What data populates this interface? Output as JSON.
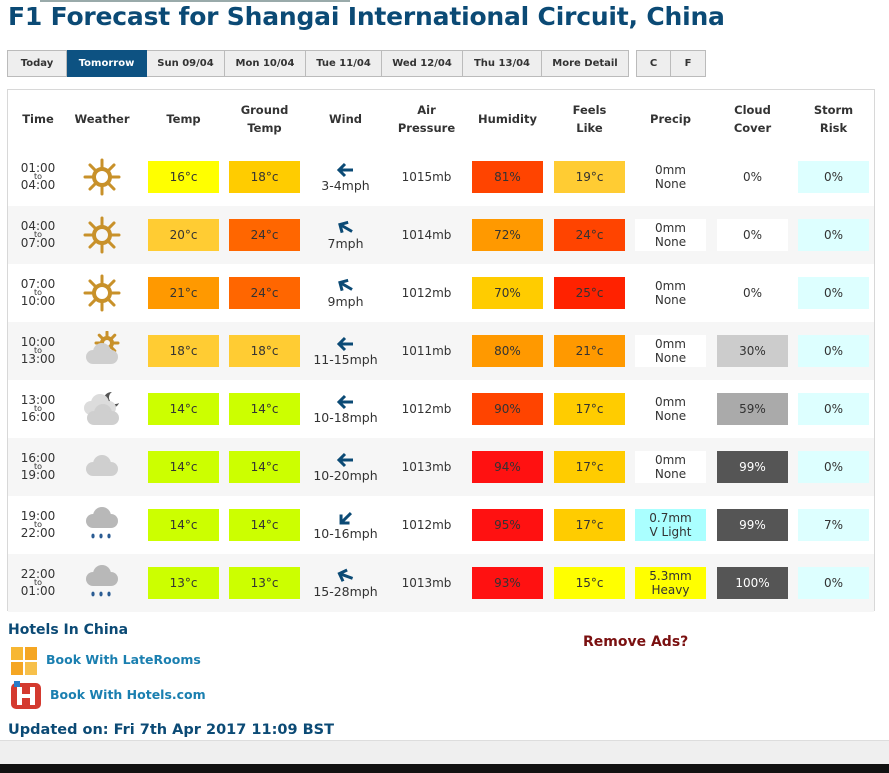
{
  "page": {
    "title": "F1 Forecast for Shangai International Circuit, China"
  },
  "tabs": [
    {
      "label": "Today",
      "active": false
    },
    {
      "label": "Tomorrow",
      "active": true
    },
    {
      "label": "Sun 09/04",
      "active": false
    },
    {
      "label": "Mon 10/04",
      "active": false
    },
    {
      "label": "Tue 11/04",
      "active": false
    },
    {
      "label": "Wed 12/04",
      "active": false
    },
    {
      "label": "Thu 13/04",
      "active": false
    },
    {
      "label": "More Detail",
      "active": false
    }
  ],
  "units": [
    {
      "label": "C"
    },
    {
      "label": "F"
    }
  ],
  "table": {
    "headers": {
      "time": "Time",
      "weather": "Weather",
      "temp": "Temp",
      "ground1": "Ground",
      "ground2": "Temp",
      "wind": "Wind",
      "air1": "Air",
      "air2": "Pressure",
      "humidity": "Humidity",
      "feels1": "Feels",
      "feels2": "Like",
      "precip": "Precip",
      "cloud1": "Cloud",
      "cloud2": "Cover",
      "storm1": "Storm",
      "storm2": "Risk"
    },
    "to_label": "to",
    "rows": [
      {
        "from": "01:00",
        "to": "04:00",
        "icon": "sun-icon",
        "temp": "16°c",
        "temp_color": "#ffff00",
        "ground": "18°c",
        "ground_color": "#ffcc00",
        "wind_dir": "arrow-left-icon",
        "wind_angle": 0,
        "wind": "3-4mph",
        "pressure": "1015mb",
        "humidity": "81%",
        "humidity_color": "#ff4400",
        "feels": "19°c",
        "feels_color": "#ffcc33",
        "precip1": "0mm",
        "precip2": "None",
        "precip_color": "#ffffff",
        "cloud": "0%",
        "cloud_color": "#ffffff",
        "storm": "0%",
        "storm_color": "#ddffff"
      },
      {
        "from": "04:00",
        "to": "07:00",
        "icon": "sun-icon",
        "temp": "20°c",
        "temp_color": "#ffcc33",
        "ground": "24°c",
        "ground_color": "#ff6600",
        "wind_dir": "arrow-up-left-icon",
        "wind_angle": 30,
        "wind": "7mph",
        "pressure": "1014mb",
        "humidity": "72%",
        "humidity_color": "#ff9900",
        "feels": "24°c",
        "feels_color": "#ff4400",
        "precip1": "0mm",
        "precip2": "None",
        "precip_color": "#ffffff",
        "cloud": "0%",
        "cloud_color": "#ffffff",
        "storm": "0%",
        "storm_color": "#ddffff"
      },
      {
        "from": "07:00",
        "to": "10:00",
        "icon": "sun-icon",
        "temp": "21°c",
        "temp_color": "#ff9900",
        "ground": "24°c",
        "ground_color": "#ff6600",
        "wind_dir": "arrow-up-left-icon",
        "wind_angle": 30,
        "wind": "9mph",
        "pressure": "1012mb",
        "humidity": "70%",
        "humidity_color": "#ffcc00",
        "feels": "25°c",
        "feels_color": "#ff2200",
        "precip1": "0mm",
        "precip2": "None",
        "precip_color": "#ffffff",
        "cloud": "0%",
        "cloud_color": "#ffffff",
        "storm": "0%",
        "storm_color": "#ddffff"
      },
      {
        "from": "10:00",
        "to": "13:00",
        "icon": "sun-cloud-icon",
        "temp": "18°c",
        "temp_color": "#ffcc33",
        "ground": "18°c",
        "ground_color": "#ffcc33",
        "wind_dir": "arrow-left-icon",
        "wind_angle": 0,
        "wind": "11-15mph",
        "pressure": "1011mb",
        "humidity": "80%",
        "humidity_color": "#ff9900",
        "feels": "21°c",
        "feels_color": "#ff9900",
        "precip1": "0mm",
        "precip2": "None",
        "precip_color": "#ffffff",
        "cloud": "30%",
        "cloud_color": "#cccccc",
        "storm": "0%",
        "storm_color": "#ddffff"
      },
      {
        "from": "13:00",
        "to": "16:00",
        "icon": "moon-cloud-icon",
        "temp": "14°c",
        "temp_color": "#ccff00",
        "ground": "14°c",
        "ground_color": "#ccff00",
        "wind_dir": "arrow-left-icon",
        "wind_angle": 0,
        "wind": "10-18mph",
        "pressure": "1012mb",
        "humidity": "90%",
        "humidity_color": "#ff4400",
        "feels": "17°c",
        "feels_color": "#ffcc00",
        "precip1": "0mm",
        "precip2": "None",
        "precip_color": "#ffffff",
        "cloud": "59%",
        "cloud_color": "#aaaaaa",
        "storm": "0%",
        "storm_color": "#ddffff"
      },
      {
        "from": "16:00",
        "to": "19:00",
        "icon": "cloud-icon",
        "temp": "14°c",
        "temp_color": "#ccff00",
        "ground": "14°c",
        "ground_color": "#ccff00",
        "wind_dir": "arrow-left-icon",
        "wind_angle": 0,
        "wind": "10-20mph",
        "pressure": "1013mb",
        "humidity": "94%",
        "humidity_color": "#ff1111",
        "feels": "17°c",
        "feels_color": "#ffcc00",
        "precip1": "0mm",
        "precip2": "None",
        "precip_color": "#ffffff",
        "cloud": "99%",
        "cloud_color": "#555555",
        "storm": "0%",
        "storm_color": "#ddffff"
      },
      {
        "from": "19:00",
        "to": "22:00",
        "icon": "rain-cloud-icon",
        "temp": "14°c",
        "temp_color": "#ccff00",
        "ground": "14°c",
        "ground_color": "#ccff00",
        "wind_dir": "arrow-down-left-icon",
        "wind_angle": -45,
        "wind": "10-16mph",
        "pressure": "1012mb",
        "humidity": "95%",
        "humidity_color": "#ff1111",
        "feels": "17°c",
        "feels_color": "#ffcc00",
        "precip1": "0.7mm",
        "precip2": "V Light",
        "precip_color": "#aaffff",
        "cloud": "99%",
        "cloud_color": "#555555",
        "storm": "7%",
        "storm_color": "#ddffff"
      },
      {
        "from": "22:00",
        "to": "01:00",
        "icon": "rain-cloud-icon",
        "temp": "13°c",
        "temp_color": "#ccff00",
        "ground": "13°c",
        "ground_color": "#ccff00",
        "wind_dir": "arrow-up-left-icon",
        "wind_angle": 20,
        "wind": "15-28mph",
        "pressure": "1013mb",
        "humidity": "93%",
        "humidity_color": "#ff1111",
        "feels": "15°c",
        "feels_color": "#ffff00",
        "precip1": "5.3mm",
        "precip2": "Heavy",
        "precip_color": "#ffff00",
        "cloud": "100%",
        "cloud_color": "#555555",
        "storm": "0%",
        "storm_color": "#ddffff"
      }
    ]
  },
  "footer": {
    "hotels_heading": "Hotels In China",
    "remove_ads": "Remove Ads?",
    "laterooms": "Book With LateRooms",
    "hotels": "Book With Hotels.com",
    "updated": "Updated on: Fri 7th Apr 2017 11:09 BST"
  }
}
